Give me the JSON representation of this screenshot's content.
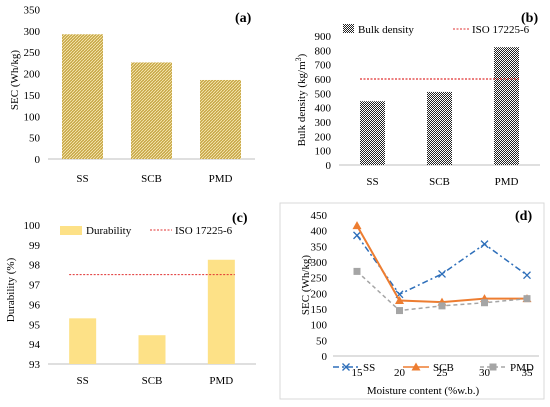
{
  "chart_data": [
    {
      "panel_label": "(a)",
      "type": "bar",
      "categories": [
        "SS",
        "SCB",
        "PMD"
      ],
      "values": [
        292,
        226,
        185
      ],
      "ylabel": "SEC (Wh/kg)",
      "ylim": [
        0,
        350
      ],
      "yticks": [
        "0",
        "50",
        "100",
        "150",
        "200",
        "250",
        "300",
        "350"
      ],
      "colors": {
        "bar": "#c8a94a",
        "hatch": "#ffffff"
      }
    },
    {
      "panel_label": "(b)",
      "type": "bar",
      "categories": [
        "SS",
        "SCB",
        "PMD"
      ],
      "series": [
        {
          "name": "Bulk density",
          "values": [
            445,
            510,
            822
          ]
        }
      ],
      "reference": {
        "name": "ISO 17225-6",
        "value": 600
      },
      "ylabel_main": "Bulk density (kg/m",
      "ylabel_sup": "3",
      "ylabel_end": ")",
      "ylim": [
        0,
        900
      ],
      "yticks": [
        "0",
        "100",
        "200",
        "300",
        "400",
        "500",
        "600",
        "700",
        "800",
        "900"
      ],
      "legend_position": "top",
      "colors": {
        "bar": "#222222",
        "reference": "#e03030"
      }
    },
    {
      "panel_label": "(c)",
      "type": "bar",
      "categories": [
        "SS",
        "SCB",
        "PMD"
      ],
      "series": [
        {
          "name": "Durability",
          "values": [
            95.3,
            94.45,
            98.25
          ]
        }
      ],
      "reference": {
        "name": "ISO 17225-6",
        "value": 97.5
      },
      "ylabel": "Durability (%)",
      "ylim": [
        93,
        100
      ],
      "yticks": [
        "93",
        "94",
        "95",
        "96",
        "97",
        "98",
        "99",
        "100"
      ],
      "legend_position": "top",
      "colors": {
        "bar": "#fde187",
        "reference": "#e03030"
      }
    },
    {
      "panel_label": "(d)",
      "type": "line",
      "x": [
        15,
        20,
        25,
        30,
        35
      ],
      "xticks": [
        "15",
        "20",
        "25",
        "30",
        "35"
      ],
      "series": [
        {
          "name": "SS",
          "values": [
            385,
            197,
            262,
            357,
            258
          ],
          "color": "#2e6fba",
          "marker": "x"
        },
        {
          "name": "SCB",
          "values": [
            416,
            177,
            172,
            183,
            183
          ],
          "color": "#ed7d31",
          "marker": "triangle"
        },
        {
          "name": "PMD",
          "values": [
            270,
            145,
            160,
            170,
            183
          ],
          "color": "#a5a5a5",
          "marker": "square"
        }
      ],
      "xlabel": "Moisture content (%w.b.)",
      "ylabel": "SEC (Wh/kg)",
      "ylim": [
        0,
        450
      ],
      "yticks": [
        "0",
        "50",
        "100",
        "150",
        "200",
        "250",
        "300",
        "350",
        "400",
        "450"
      ],
      "legend_position": "bottom"
    }
  ]
}
